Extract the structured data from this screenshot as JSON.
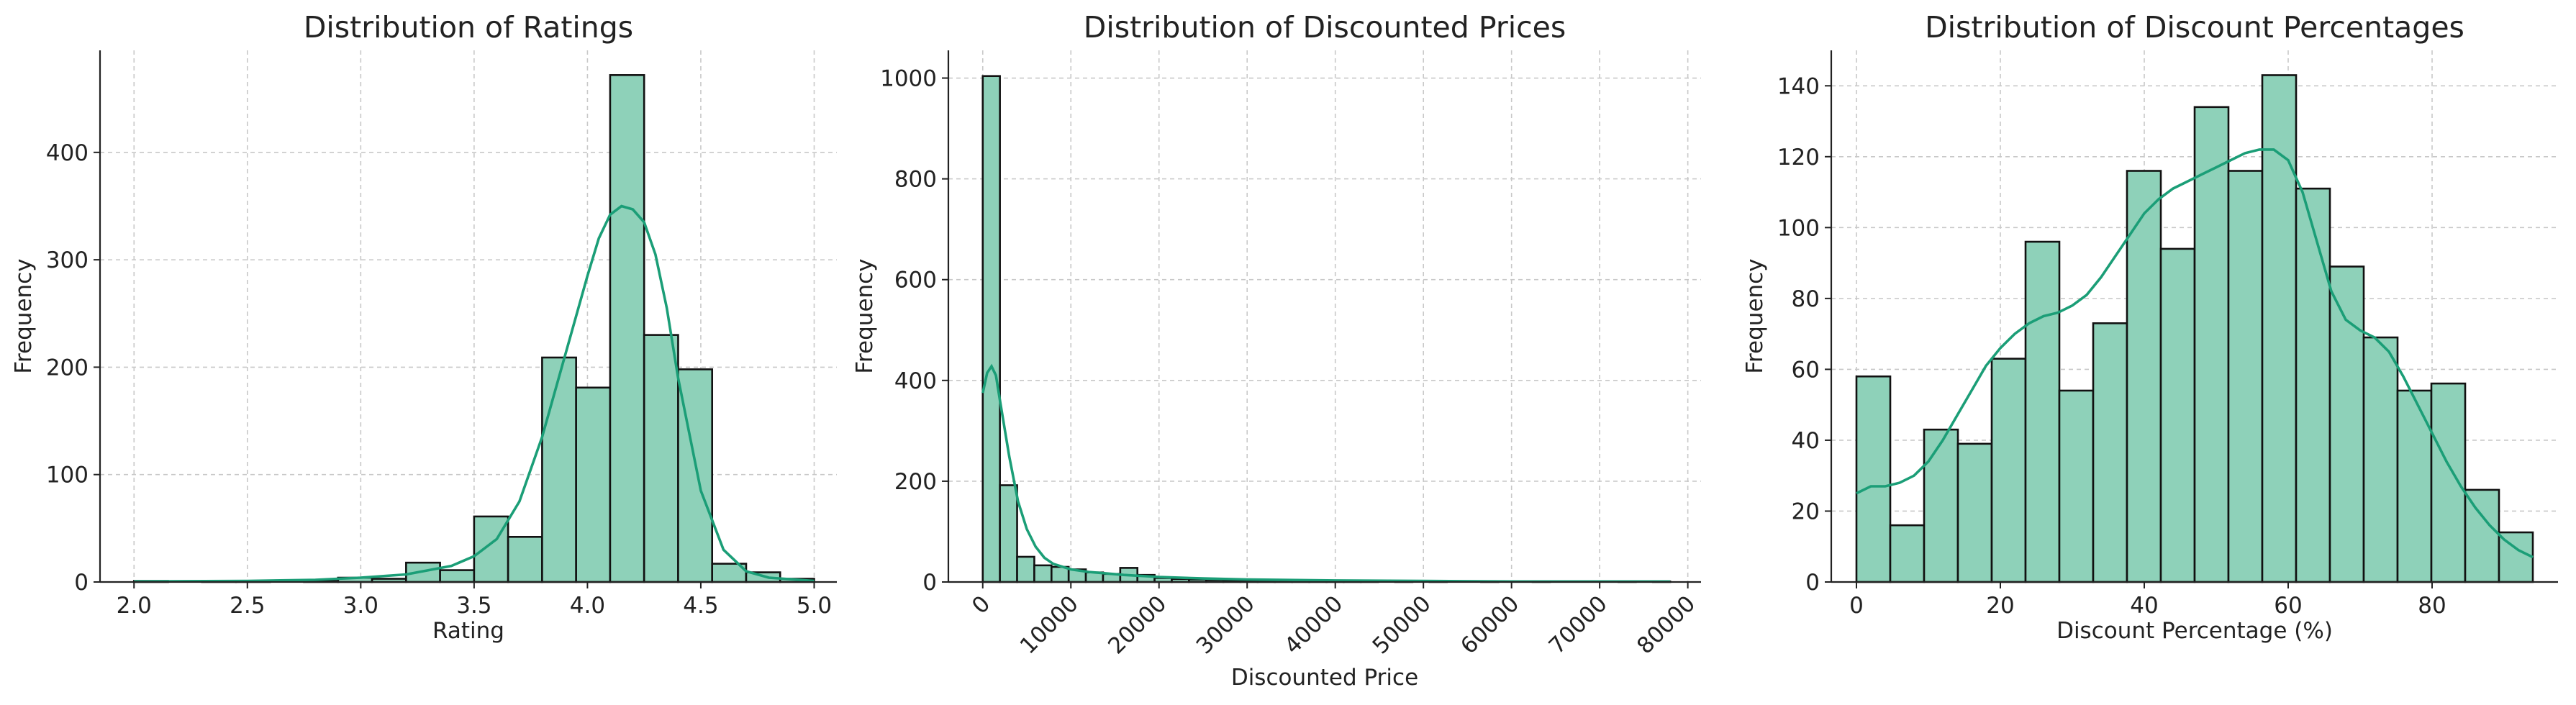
{
  "chart_data": [
    {
      "type": "histogram",
      "title": "Distribution of Ratings",
      "xlabel": "Rating",
      "ylabel": "Frequency",
      "xlim": [
        1.85,
        5.1
      ],
      "ylim": [
        0,
        495
      ],
      "xticks": [
        2.0,
        2.5,
        3.0,
        3.5,
        4.0,
        4.5,
        5.0
      ],
      "xtick_labels": [
        "2.0",
        "2.5",
        "3.0",
        "3.5",
        "4.0",
        "4.5",
        "5.0"
      ],
      "xtick_rotation": 0,
      "yticks": [
        0,
        100,
        200,
        300,
        400
      ],
      "ytick_labels": [
        "0",
        "100",
        "200",
        "300",
        "400"
      ],
      "bin_edges": [
        2.0,
        2.15,
        2.3,
        2.45,
        2.6,
        2.75,
        2.9,
        3.05,
        3.2,
        3.35,
        3.5,
        3.65,
        3.8,
        3.95,
        4.1,
        4.25,
        4.4,
        4.55,
        4.7,
        4.85,
        5.0
      ],
      "counts": [
        1,
        0,
        1,
        1,
        0,
        1,
        4,
        3,
        18,
        11,
        61,
        42,
        209,
        181,
        472,
        230,
        198,
        17,
        9,
        3
      ],
      "kde": {
        "x": [
          2.0,
          2.5,
          2.8,
          3.0,
          3.2,
          3.4,
          3.5,
          3.6,
          3.7,
          3.8,
          3.9,
          4.0,
          4.05,
          4.1,
          4.15,
          4.2,
          4.25,
          4.3,
          4.35,
          4.4,
          4.5,
          4.6,
          4.7,
          4.8,
          5.0
        ],
        "y": [
          0.5,
          1,
          2,
          4,
          7,
          15,
          24,
          40,
          75,
          135,
          210,
          285,
          320,
          342,
          350,
          347,
          335,
          305,
          255,
          190,
          85,
          30,
          10,
          4,
          1
        ]
      },
      "grid": true
    },
    {
      "type": "histogram",
      "title": "Distribution of Discounted Prices",
      "xlabel": "Discounted Price",
      "ylabel": "Frequency",
      "xlim": [
        -3900,
        81500
      ],
      "ylim": [
        0,
        1055
      ],
      "xticks": [
        0,
        10000,
        20000,
        30000,
        40000,
        50000,
        60000,
        70000,
        80000
      ],
      "xtick_labels": [
        "0",
        "10000",
        "20000",
        "30000",
        "40000",
        "50000",
        "60000",
        "70000",
        "80000"
      ],
      "xtick_rotation": -45,
      "yticks": [
        0,
        200,
        400,
        600,
        800,
        1000
      ],
      "ytick_labels": [
        "0",
        "200",
        "400",
        "600",
        "800",
        "1000"
      ],
      "bin_edges": [
        0,
        1950,
        3900,
        5850,
        7800,
        9750,
        11700,
        13650,
        15600,
        17550,
        19500,
        21450,
        23400,
        25350,
        27300,
        29250,
        31200,
        33150,
        35100,
        37050,
        39000,
        40950,
        42900,
        44850,
        46800,
        48750,
        50700,
        52650,
        54600,
        56550,
        58500,
        60450,
        62400,
        64350,
        66300,
        68250,
        70200,
        72150,
        74100,
        76050,
        78000
      ],
      "counts": [
        1004,
        192,
        50,
        33,
        30,
        25,
        19,
        16,
        28,
        14,
        8,
        6,
        5,
        4,
        3,
        3,
        2,
        2,
        2,
        1,
        1,
        1,
        1,
        0,
        1,
        0,
        1,
        0,
        0,
        1,
        0,
        0,
        1,
        0,
        0,
        0,
        0,
        1,
        0,
        1
      ],
      "kde": {
        "x": [
          0,
          500,
          1000,
          1500,
          2000,
          3000,
          4000,
          5000,
          6000,
          7000,
          8000,
          10000,
          12000,
          14000,
          16000,
          20000,
          25000,
          30000,
          40000,
          50000,
          60000,
          70000,
          78000
        ],
        "y": [
          375,
          415,
          428,
          410,
          355,
          250,
          160,
          105,
          70,
          48,
          36,
          25,
          20,
          17,
          14,
          10,
          7,
          5,
          3,
          2,
          1,
          1,
          1
        ]
      },
      "grid": true
    },
    {
      "type": "histogram",
      "title": "Distribution of Discount Percentages",
      "xlabel": "Discount Percentage (%)",
      "ylabel": "Frequency",
      "xlim": [
        -3.5,
        97.5
      ],
      "ylim": [
        0,
        150
      ],
      "xticks": [
        0,
        20,
        40,
        60,
        80
      ],
      "xtick_labels": [
        "0",
        "20",
        "40",
        "60",
        "80"
      ],
      "xtick_rotation": 0,
      "yticks": [
        0,
        20,
        40,
        60,
        80,
        100,
        120,
        140
      ],
      "ytick_labels": [
        "0",
        "20",
        "40",
        "60",
        "80",
        "100",
        "120",
        "140"
      ],
      "bin_edges": [
        0,
        4.7,
        9.4,
        14.1,
        18.8,
        23.5,
        28.2,
        32.9,
        37.6,
        42.3,
        47.0,
        51.7,
        56.4,
        61.1,
        65.8,
        70.5,
        75.2,
        79.9,
        84.6,
        89.3,
        94.0
      ],
      "counts": [
        58,
        16,
        43,
        39,
        63,
        96,
        54,
        73,
        116,
        94,
        134,
        116,
        143,
        111,
        89,
        69,
        54,
        56,
        26,
        14
      ],
      "kde": {
        "x": [
          0,
          2,
          4,
          6,
          8,
          10,
          12,
          14,
          16,
          18,
          20,
          22,
          24,
          26,
          28,
          30,
          32,
          34,
          36,
          38,
          40,
          42,
          44,
          46,
          48,
          50,
          52,
          54,
          56,
          58,
          60,
          62,
          64,
          66,
          68,
          70,
          72,
          74,
          76,
          78,
          80,
          82,
          84,
          86,
          88,
          90,
          92,
          94
        ],
        "y": [
          25,
          27,
          27,
          28,
          30,
          34,
          40,
          47,
          54,
          61,
          66,
          70,
          73,
          75,
          76,
          78,
          81,
          86,
          92,
          98,
          104,
          108,
          111,
          113,
          115,
          117,
          119,
          121,
          122,
          122,
          119,
          110,
          96,
          82,
          74,
          71,
          69,
          65,
          58,
          50,
          42,
          34,
          27,
          21,
          16,
          12,
          9,
          7
        ]
      },
      "grid": true
    }
  ]
}
